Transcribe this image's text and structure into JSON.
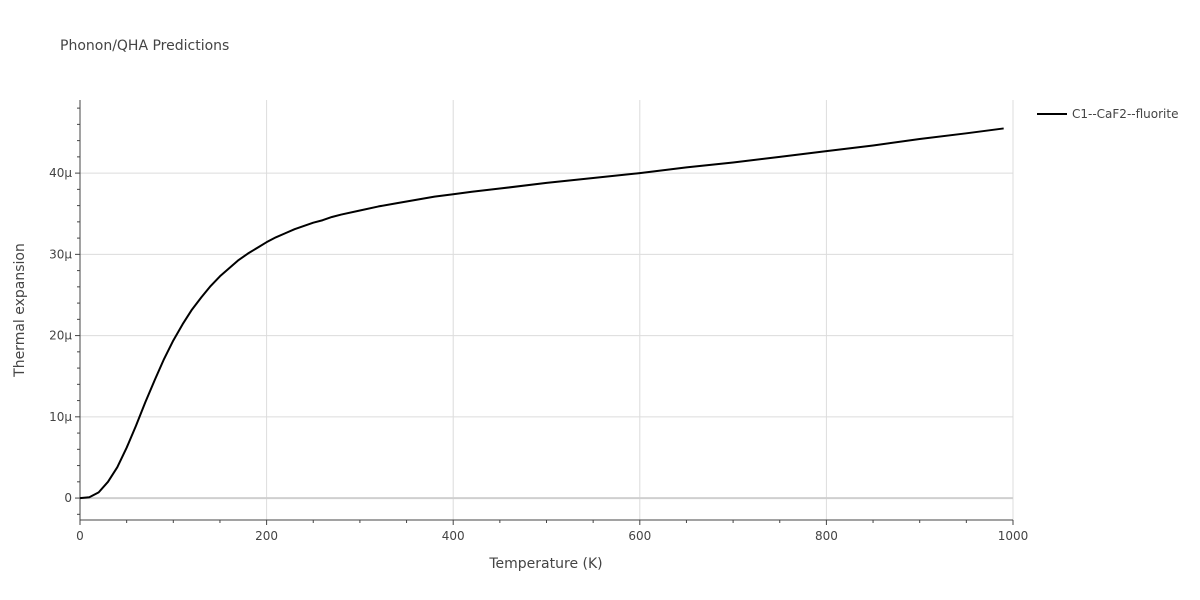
{
  "chart_data": {
    "type": "line",
    "title": "Phonon/QHA Predictions",
    "xlabel": "Temperature (K)",
    "ylabel": "Thermal expansion",
    "xlim": [
      0,
      1000
    ],
    "ylim": [
      -2.7e-06,
      4.9e-05
    ],
    "grid": true,
    "legend_position": "top-right",
    "x_ticks": [
      {
        "value": 0,
        "label": "0"
      },
      {
        "value": 200,
        "label": "200"
      },
      {
        "value": 400,
        "label": "400"
      },
      {
        "value": 600,
        "label": "600"
      },
      {
        "value": 800,
        "label": "800"
      },
      {
        "value": 1000,
        "label": "1000"
      }
    ],
    "y_ticks": [
      {
        "value": 0,
        "label": "0"
      },
      {
        "value": 1e-05,
        "label": "10μ"
      },
      {
        "value": 2e-05,
        "label": "20μ"
      },
      {
        "value": 3e-05,
        "label": "30μ"
      },
      {
        "value": 4e-05,
        "label": "40μ"
      }
    ],
    "series": [
      {
        "name": "C1--CaF2--fluorite",
        "color": "#000000",
        "x": [
          0,
          10,
          20,
          30,
          40,
          50,
          60,
          70,
          80,
          90,
          100,
          110,
          120,
          130,
          140,
          150,
          160,
          170,
          180,
          190,
          200,
          210,
          220,
          230,
          240,
          250,
          260,
          270,
          280,
          300,
          320,
          340,
          360,
          380,
          400,
          420,
          450,
          500,
          550,
          600,
          650,
          700,
          750,
          800,
          850,
          900,
          950,
          990
        ],
        "y": [
          0,
          1e-07,
          7e-07,
          2e-06,
          3.8e-06,
          6.2e-06,
          8.9e-06,
          1.18e-05,
          1.45e-05,
          1.71e-05,
          1.94e-05,
          2.14e-05,
          2.32e-05,
          2.47e-05,
          2.61e-05,
          2.73e-05,
          2.83e-05,
          2.93e-05,
          3.01e-05,
          3.08e-05,
          3.15e-05,
          3.21e-05,
          3.26e-05,
          3.31e-05,
          3.35e-05,
          3.39e-05,
          3.42e-05,
          3.46e-05,
          3.49e-05,
          3.54e-05,
          3.59e-05,
          3.63e-05,
          3.67e-05,
          3.71e-05,
          3.74e-05,
          3.77e-05,
          3.81e-05,
          3.88e-05,
          3.94e-05,
          4e-05,
          4.07e-05,
          4.13e-05,
          4.2e-05,
          4.27e-05,
          4.34e-05,
          4.42e-05,
          4.49e-05,
          4.55e-05
        ]
      }
    ]
  }
}
